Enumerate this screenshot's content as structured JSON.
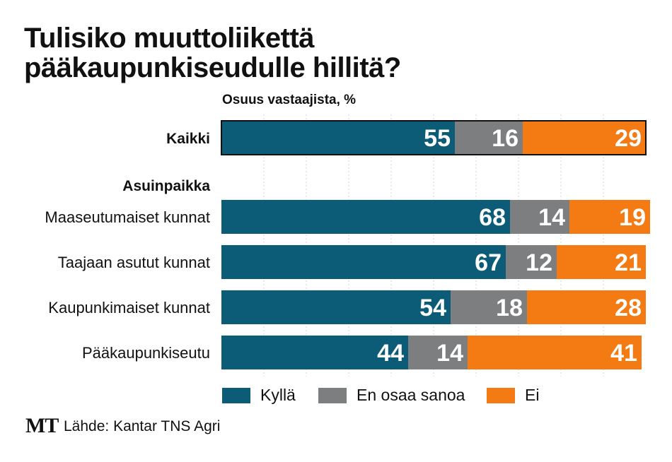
{
  "chart_data": {
    "type": "bar",
    "orientation": "horizontal",
    "stacked": true,
    "title": "Tulisiko muuttoliikettä pääkaupunkiseudulle hillitä?",
    "title_lines": [
      "Tulisiko muuttoliikettä",
      "pääkaupunkiseudulle hillitä?"
    ],
    "subtitle": "Osuus vastaajista, %",
    "group_heading": "Asuinpaikka",
    "categories": [
      "Kaikki",
      "Maaseutumaiset kunnat",
      "Taajaan asutut kunnat",
      "Kaupunkimaiset kunnat",
      "Pääkaupunkiseutu"
    ],
    "series": [
      {
        "name": "Kyllä",
        "color": "#0c5c77",
        "values": [
          55,
          68,
          67,
          54,
          44
        ]
      },
      {
        "name": "En osaa sanoa",
        "color": "#7d7e80",
        "values": [
          16,
          14,
          12,
          18,
          14
        ]
      },
      {
        "name": "Ei",
        "color": "#f47a14",
        "values": [
          29,
          19,
          21,
          28,
          41
        ]
      }
    ],
    "xlim": [
      0,
      100
    ],
    "grid": true,
    "legend_position": "bottom"
  },
  "footer": {
    "logo": "MT",
    "source": "Lähde: Kantar TNS Agri"
  }
}
